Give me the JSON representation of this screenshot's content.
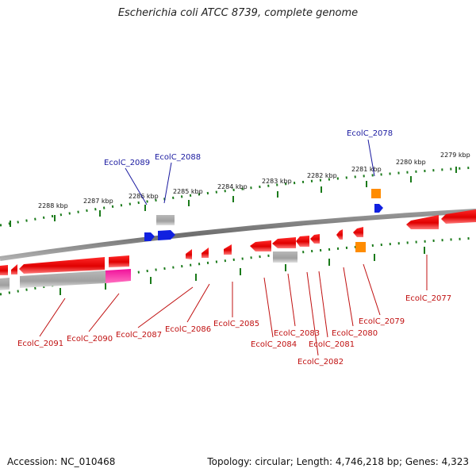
{
  "title": "Escherichia coli ATCC 8739, complete genome",
  "accession": "Accession: NC_010468",
  "summary": "Topology: circular; Length: 4,746,218 bp; Genes: 4,323",
  "kbp_labels": [
    "2288 kbp",
    "2287 kbp",
    "2286 kbp",
    "2285 kbp",
    "2284 kbp",
    "2283 kbp",
    "2282 kbp",
    "2281 kbp",
    "2280 kbp",
    "2279 kbp"
  ],
  "gene_labels": [
    "EcolC_2089",
    "EcolC_2088",
    "EcolC_2078",
    "EcolC_2091",
    "EcolC_2090",
    "EcolC_2087",
    "EcolC_2086",
    "EcolC_2085",
    "EcolC_2084",
    "EcolC_2083",
    "EcolC_2082",
    "EcolC_2081",
    "EcolC_2080",
    "EcolC_2079",
    "EcolC_2077"
  ],
  "colors": {
    "gene_forward": "#e00000",
    "gene_blue": "#1020e0",
    "gene_orange": "#ff8c00",
    "gene_magenta": "#e0108c",
    "gene_gray": "#a8a8a8",
    "backbone": "#808080",
    "tick": "#1a7a1a",
    "label_blue": "#1a1aa0",
    "label_red": "#c01010"
  }
}
